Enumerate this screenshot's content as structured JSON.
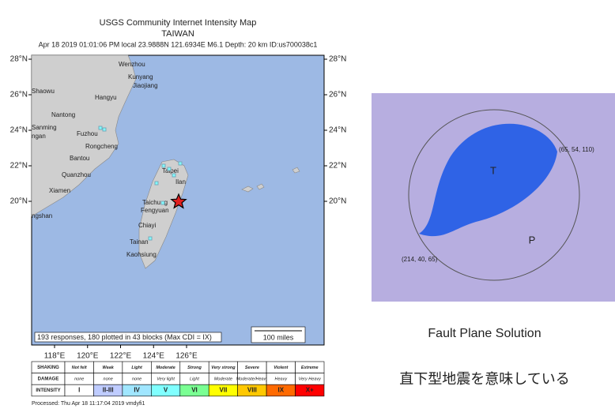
{
  "map": {
    "title": "USGS Community Internet Intensity Map",
    "subtitle": "TAIWAN",
    "event": "Apr 18 2019 01:01:06 PM local 23.9888N 121.6934E M6.1 Depth: 20 km ID:us700038c1",
    "lat_ticks": [
      {
        "value": 28,
        "label": "28°N"
      },
      {
        "value": 26,
        "label": "26°N"
      },
      {
        "value": 24,
        "label": "24°N"
      },
      {
        "value": 22,
        "label": "22°N"
      },
      {
        "value": 20,
        "label": "20°N"
      }
    ],
    "lon_ticks": [
      {
        "value": 118,
        "label": "118°E"
      },
      {
        "value": 120,
        "label": "120°E"
      },
      {
        "value": 122,
        "label": "122°E"
      },
      {
        "value": 124,
        "label": "124°E"
      },
      {
        "value": 126,
        "label": "126°E"
      }
    ],
    "places": [
      "Wenzhou",
      "Kunyang",
      "Jiaojiang",
      "Hangyu",
      "Shaowu",
      "Nantong",
      "Sanming",
      "ngan",
      "Fuzhou",
      "Rongcheng",
      "Bantou",
      "Quanzhou",
      "Xiamen",
      "ngshan",
      "Taipei",
      "Ilan",
      "Taichung",
      "Fengyuan",
      "Chiayi",
      "Tainan",
      "Kaohsiung"
    ],
    "summary": "193 responses, 180 plotted in 43 blocks (Max CDI = IX)",
    "scale_label": "100 miles"
  },
  "legend": {
    "rows": [
      {
        "label": "SHAKING",
        "cells": [
          "Not felt",
          "Weak",
          "Light",
          "Moderate",
          "Strong",
          "Very strong",
          "Severe",
          "Violent",
          "Extreme"
        ]
      },
      {
        "label": "DAMAGE",
        "cells": [
          "none",
          "none",
          "none",
          "Very light",
          "Light",
          "Moderate",
          "Moderate/Heavy",
          "Heavy",
          "Very Heavy"
        ]
      },
      {
        "label": "INTENSITY",
        "cells": [
          "I",
          "II-III",
          "IV",
          "V",
          "VI",
          "VII",
          "VIII",
          "IX",
          "X+"
        ]
      }
    ],
    "colors": [
      "#ffffff",
      "#bfccff",
      "#a0e6ff",
      "#80ffff",
      "#7aff93",
      "#ffff00",
      "#ffc800",
      "#ff6a00",
      "#ff0000"
    ]
  },
  "processed": "Processed: Thu Apr 18 11:17:04 2019 vmdyfi1",
  "focal_mechanism": {
    "plane1": "(65, 54, 110)",
    "plane2": "(214, 40, 65)",
    "t_label": "T",
    "p_label": "P",
    "caption": "Fault Plane Solution",
    "note": "直下型地震を意味している"
  }
}
